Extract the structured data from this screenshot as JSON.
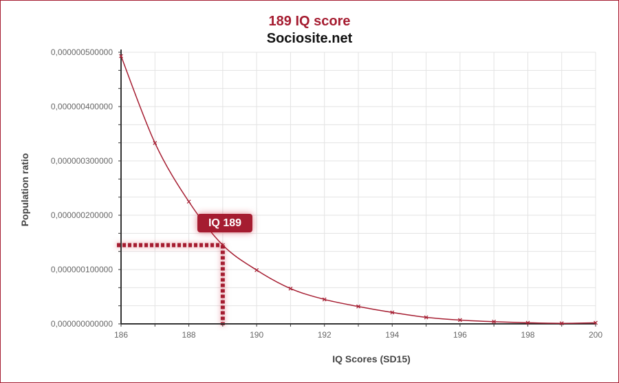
{
  "header": {
    "title": "189 IQ score",
    "subtitle": "Sociosite.net"
  },
  "callout": {
    "label": "IQ 189",
    "x": 189,
    "y": 1.45e-07
  },
  "colors": {
    "accent": "#a51c30",
    "grid": "#e3e3e3",
    "axis": "#333333",
    "tick_text": "#666666"
  },
  "chart_data": {
    "type": "line",
    "title": "189 IQ score",
    "subtitle": "Sociosite.net",
    "xlabel": "IQ Scores (SD15)",
    "ylabel": "Population ratio",
    "xlim": [
      186,
      200
    ],
    "ylim": [
      0,
      5e-07
    ],
    "grid": true,
    "x_ticks": [
      186,
      188,
      190,
      192,
      194,
      196,
      198,
      200
    ],
    "x_tick_labels": [
      "186",
      "188",
      "190",
      "192",
      "194",
      "196",
      "198",
      "200"
    ],
    "y_ticks": [
      0,
      1e-07,
      2e-07,
      3e-07,
      4e-07,
      5e-07
    ],
    "y_tick_labels": [
      "0,000000000000",
      "0,000000100000",
      "0,000000200000",
      "0,000000300000",
      "0,000000400000",
      "0,000000500000"
    ],
    "series": [
      {
        "x": [
          186,
          187,
          188,
          189,
          190,
          191,
          192,
          193,
          194,
          195,
          196,
          197,
          198,
          199,
          200
        ],
        "values": [
          4.93e-07,
          3.33e-07,
          2.25e-07,
          1.45e-07,
          9.9e-08,
          6.5e-08,
          4.5e-08,
          3.2e-08,
          2.1e-08,
          1.2e-08,
          7e-09,
          4e-09,
          2e-09,
          1e-09,
          2e-09
        ]
      }
    ]
  }
}
